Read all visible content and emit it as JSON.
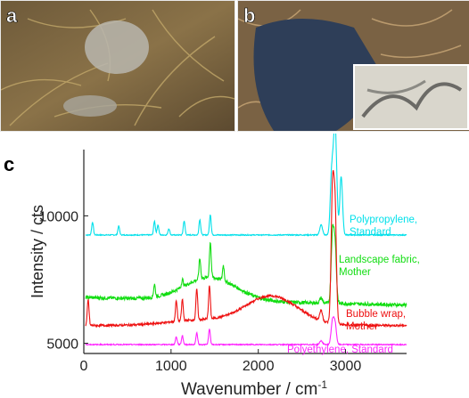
{
  "panels": {
    "a": {
      "letter": "a"
    },
    "b": {
      "letter": "b"
    },
    "c": {
      "letter": "c"
    }
  },
  "chart_data": {
    "type": "line",
    "title": "",
    "xlabel": "Wavenumber / cm",
    "xlabel_superscript": "-1",
    "ylabel": "Intensity / cts",
    "xlim": [
      0,
      3700
    ],
    "ylim": [
      4600,
      12600
    ],
    "x_ticks": [
      0,
      1000,
      2000,
      3000
    ],
    "y_ticks": [
      5000,
      10000
    ],
    "grid": false,
    "legend": "inline labels at right end of each trace",
    "series": [
      {
        "name": "Polypropylene, Standard",
        "label_lines": [
          "Polypropylene,",
          "Standard"
        ],
        "color": "#00e0ea",
        "baseline": 9250,
        "peaks": [
          [
            100,
            500
          ],
          [
            400,
            350
          ],
          [
            810,
            550
          ],
          [
            850,
            400
          ],
          [
            975,
            250
          ],
          [
            1150,
            550
          ],
          [
            1330,
            600
          ],
          [
            1450,
            800
          ],
          [
            2720,
            400
          ],
          [
            2840,
            2300
          ],
          [
            2870,
            2700
          ],
          [
            2890,
            2600
          ],
          [
            2950,
            2300
          ]
        ]
      },
      {
        "name": "Landscape fabric, Mother",
        "label_lines": [
          "Landscape fabric,",
          "Mother"
        ],
        "color": "#11dd11",
        "baseline": 6800,
        "peaks": [
          [
            810,
            500
          ],
          [
            1130,
            300
          ],
          [
            1330,
            800
          ],
          [
            1450,
            1400
          ],
          [
            1600,
            600
          ],
          [
            2720,
            200
          ],
          [
            2850,
            2600
          ],
          [
            2880,
            2200
          ]
        ]
      },
      {
        "name": "Bubble wrap, Mother",
        "label_lines": [
          "Bubble wrap,",
          "Mother"
        ],
        "color": "#ee1111",
        "baseline": 5700,
        "peaks": [
          [
            50,
            1000
          ],
          [
            1060,
            800
          ],
          [
            1130,
            850
          ],
          [
            1295,
            1200
          ],
          [
            1440,
            1300
          ],
          [
            2720,
            400
          ],
          [
            2850,
            5000
          ],
          [
            2880,
            4400
          ]
        ]
      },
      {
        "name": "Polyethylene, Standard",
        "label_lines": [
          "Polyethylene, Standard"
        ],
        "color": "#ff22ff",
        "baseline": 4950,
        "peaks": [
          [
            1060,
            300
          ],
          [
            1130,
            350
          ],
          [
            1295,
            450
          ],
          [
            1440,
            600
          ],
          [
            2720,
            150
          ],
          [
            2850,
            900
          ],
          [
            2880,
            800
          ]
        ]
      }
    ]
  }
}
